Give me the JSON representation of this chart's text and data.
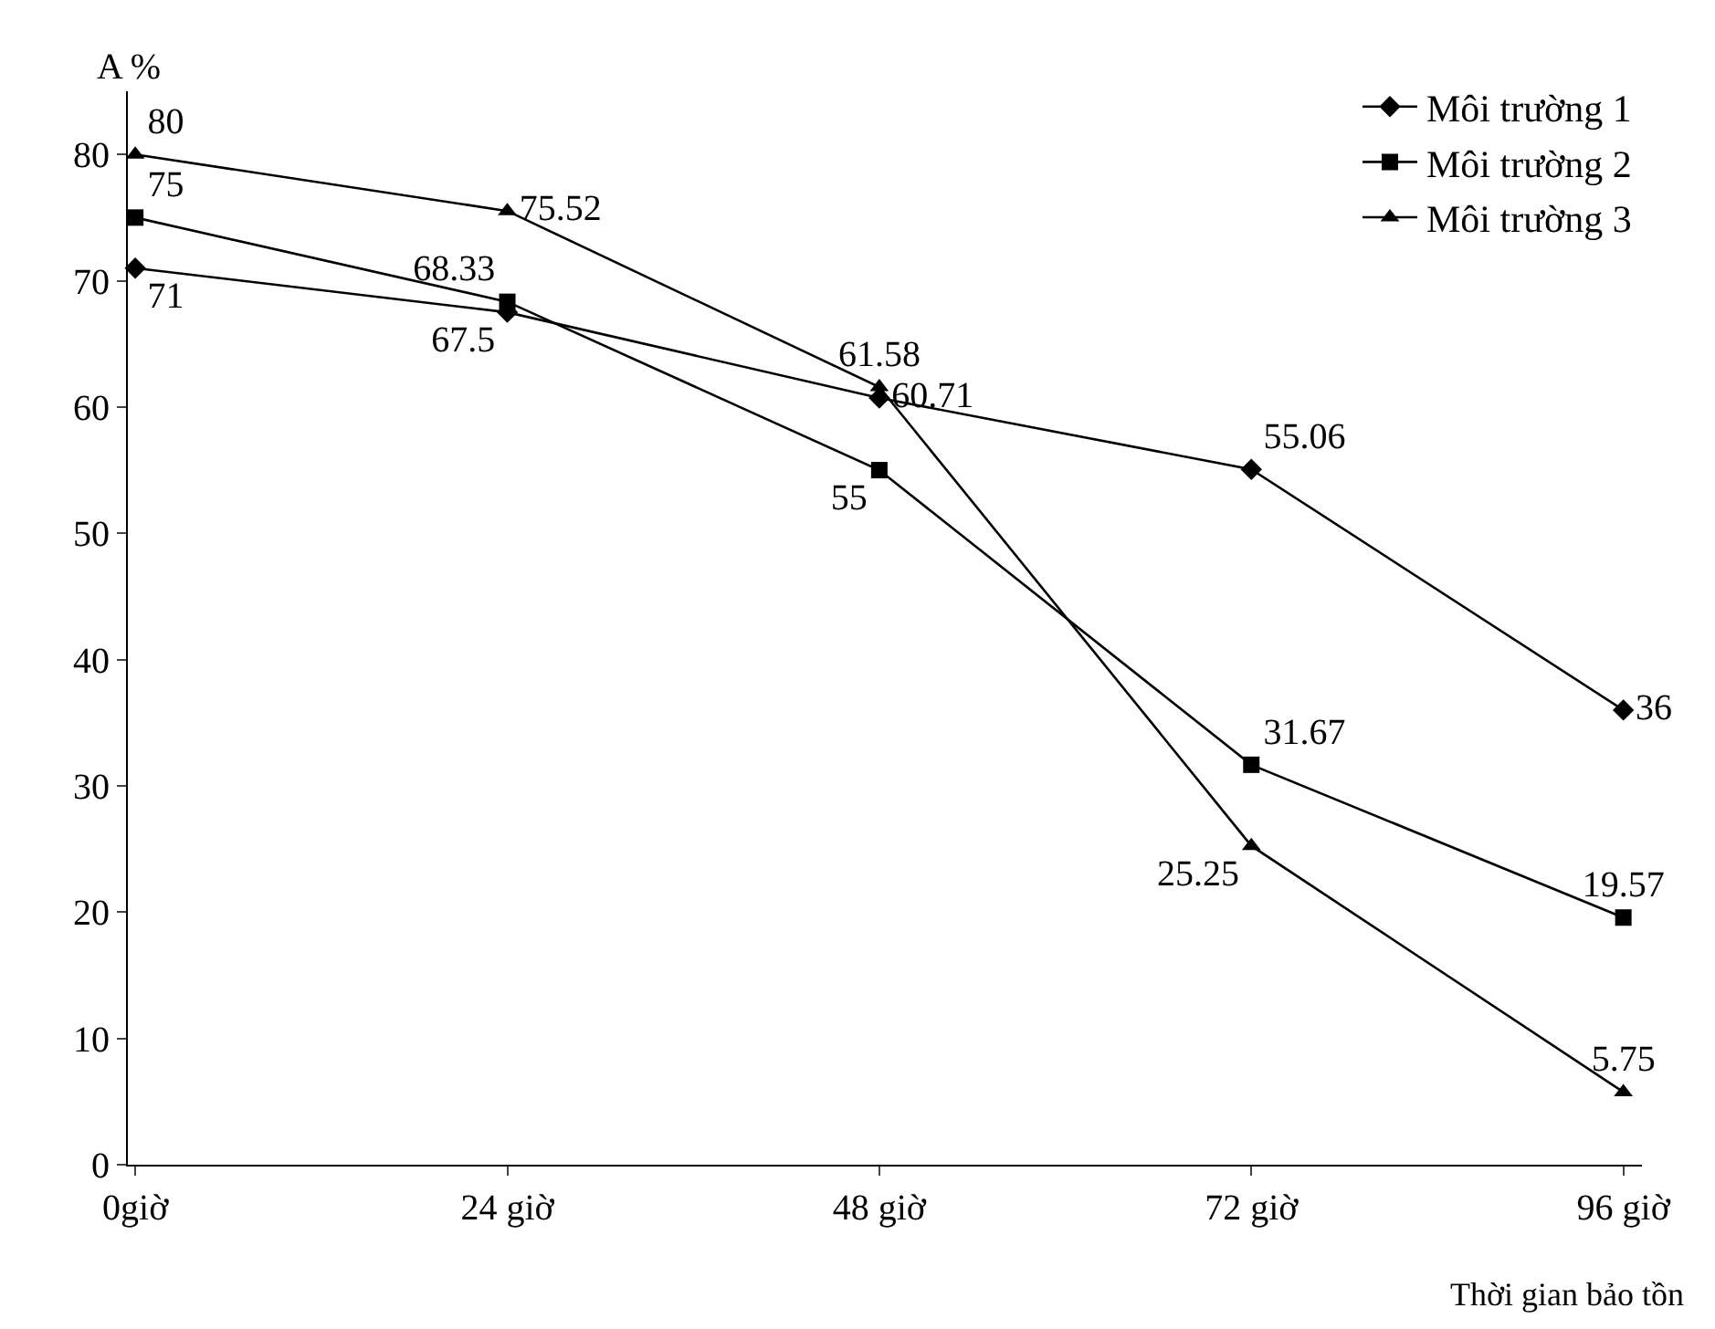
{
  "chart_data": {
    "type": "line",
    "ylabel": "A %",
    "xlabel": "Thời gian bảo tồn",
    "categories": [
      "0giờ",
      "24 giờ",
      "48 giờ",
      "72 giờ",
      "96 giờ"
    ],
    "series": [
      {
        "name": "Môi trường 1",
        "color": "#000000",
        "marker": "diamond",
        "values": [
          71,
          67.5,
          60.71,
          55.06,
          36
        ]
      },
      {
        "name": "Môi trường 2",
        "color": "#000000",
        "marker": "square",
        "values": [
          75,
          68.33,
          55,
          31.67,
          19.57
        ]
      },
      {
        "name": "Môi trường 3",
        "color": "#000000",
        "marker": "triangle",
        "values": [
          80,
          75.52,
          61.58,
          25.25,
          5.75
        ]
      }
    ],
    "ylim": [
      0,
      85
    ],
    "yticks": [
      0,
      10,
      20,
      30,
      40,
      50,
      60,
      70,
      80
    ],
    "legend": "top right",
    "data_labels": true,
    "line_style": "solid"
  }
}
